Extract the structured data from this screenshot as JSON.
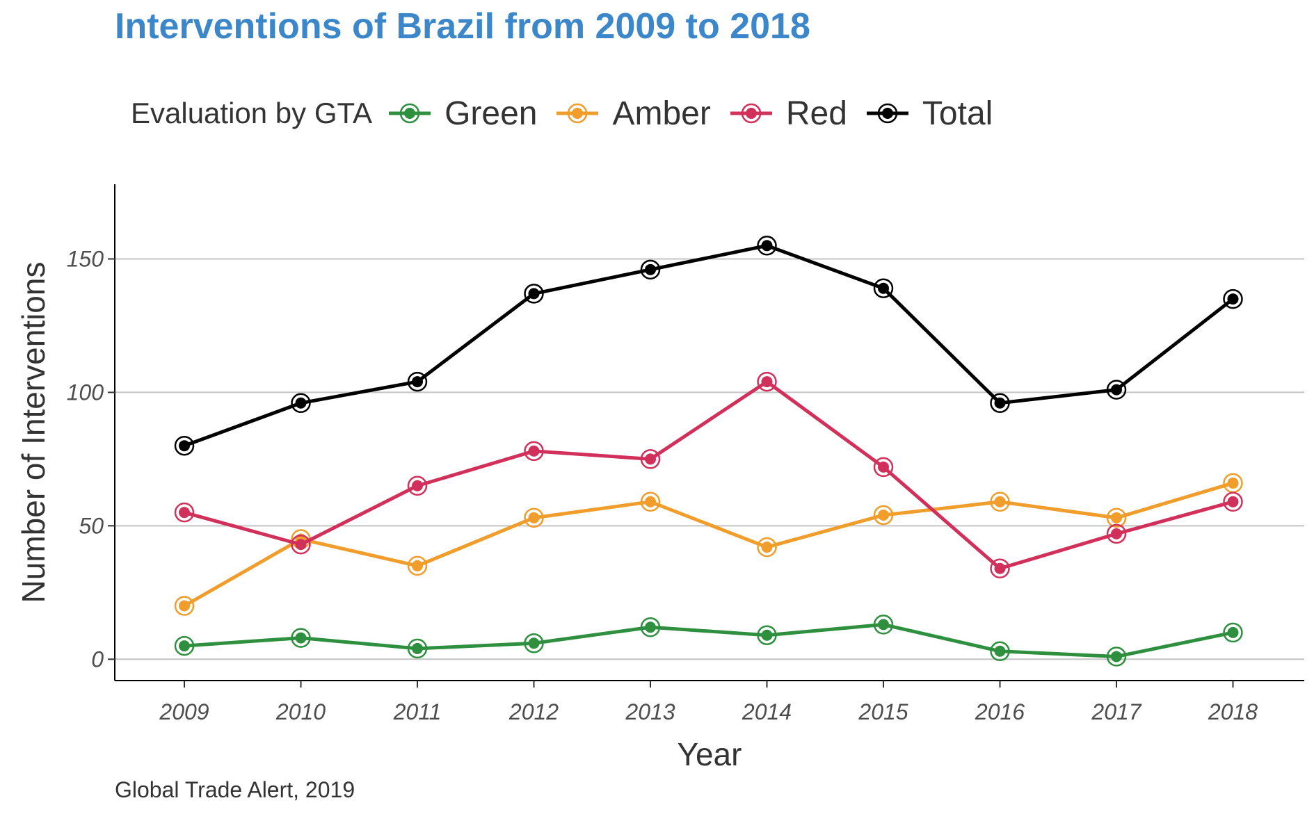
{
  "chart_data": {
    "type": "line",
    "title": "Interventions of Brazil from 2009 to 2018",
    "xlabel": "Year",
    "ylabel": "Number of Interventions",
    "legend_title": "Evaluation by GTA",
    "legend_position": "top",
    "caption": "Global Trade Alert, 2019",
    "x": [
      "2009",
      "2010",
      "2011",
      "2012",
      "2013",
      "2014",
      "2015",
      "2016",
      "2017",
      "2018"
    ],
    "ylim": [
      -8,
      178
    ],
    "yticks": [
      0,
      50,
      100,
      150
    ],
    "grid": "horizontal",
    "series": [
      {
        "name": "Green",
        "color": "#2e8f3e",
        "values": [
          5,
          8,
          4,
          6,
          12,
          9,
          13,
          3,
          1,
          10
        ]
      },
      {
        "name": "Amber",
        "color": "#f09d2b",
        "values": [
          20,
          45,
          35,
          53,
          59,
          42,
          54,
          59,
          53,
          66
        ]
      },
      {
        "name": "Red",
        "color": "#d1305b",
        "values": [
          55,
          43,
          65,
          78,
          75,
          104,
          72,
          34,
          47,
          59
        ]
      },
      {
        "name": "Total",
        "color": "#000000",
        "values": [
          80,
          96,
          104,
          137,
          146,
          155,
          139,
          96,
          101,
          135
        ]
      }
    ]
  }
}
